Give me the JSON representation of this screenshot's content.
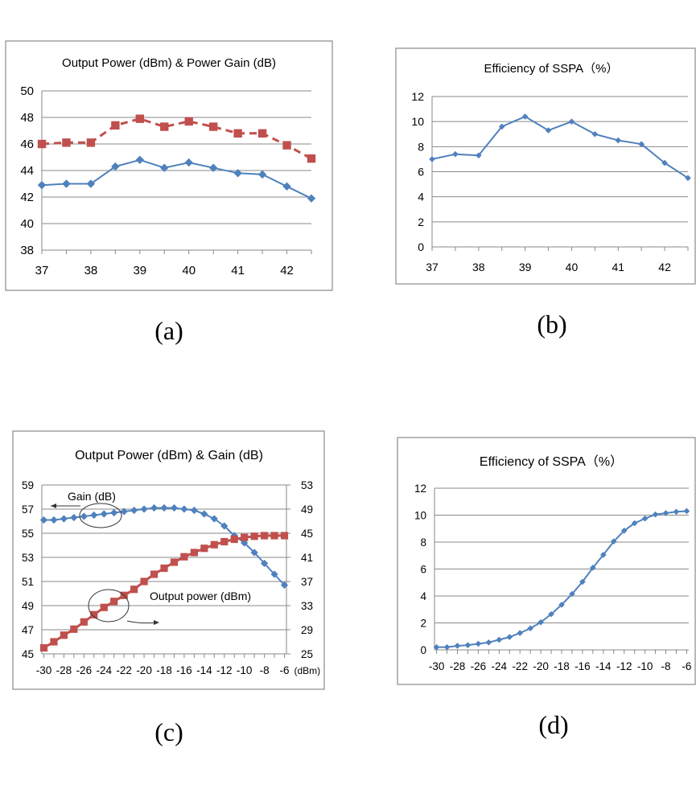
{
  "colors": {
    "blue": "#4f81bd",
    "red": "#c0504d",
    "grid": "#8a8a8a"
  },
  "captions": [
    "(a)",
    "(b)",
    "(c)",
    "(d)"
  ],
  "chart_data": [
    {
      "id": "a",
      "type": "line",
      "title": "Output Power (dBm) & Power Gain (dB)",
      "x": [
        37,
        37.5,
        38,
        38.5,
        39,
        39.5,
        40,
        40.5,
        41,
        41.5,
        42,
        42.5
      ],
      "xticks": [
        37,
        38,
        39,
        40,
        41,
        42
      ],
      "xlim": [
        37,
        42.5
      ],
      "yticks": [
        38,
        40,
        42,
        44,
        46,
        48,
        50
      ],
      "ylim": [
        38,
        50
      ],
      "series": [
        {
          "name": "Output Power (dBm)",
          "color": "#4f81bd",
          "marker": "diamond",
          "dashed": false,
          "values": [
            42.9,
            43.0,
            43.0,
            44.3,
            44.8,
            44.2,
            44.6,
            44.2,
            43.8,
            43.7,
            42.8,
            41.9
          ]
        },
        {
          "name": "Power Gain (dB)",
          "color": "#c0504d",
          "marker": "square",
          "dashed": true,
          "values": [
            46.0,
            46.1,
            46.1,
            47.4,
            47.9,
            47.3,
            47.7,
            47.3,
            46.8,
            46.8,
            45.9,
            44.9
          ]
        }
      ]
    },
    {
      "id": "b",
      "type": "line",
      "title": "Efficiency of SSPA（%）",
      "x": [
        37,
        37.5,
        38,
        38.5,
        39,
        39.5,
        40,
        40.5,
        41,
        41.5,
        42,
        42.5
      ],
      "xticks": [
        37,
        38,
        39,
        40,
        41,
        42
      ],
      "xlim": [
        37,
        42.5
      ],
      "yticks": [
        0,
        2,
        4,
        6,
        8,
        10,
        12
      ],
      "ylim": [
        0,
        12
      ],
      "series": [
        {
          "name": "Efficiency (%)",
          "color": "#4f81bd",
          "marker": "diamond",
          "dashed": false,
          "values": [
            7.0,
            7.4,
            7.3,
            9.6,
            10.4,
            9.3,
            10.0,
            9.0,
            8.5,
            8.2,
            6.7,
            5.5
          ]
        }
      ]
    },
    {
      "id": "c",
      "type": "line",
      "title": "Output Power (dBm) & Gain (dB)",
      "x": [
        -30,
        -29,
        -28,
        -27,
        -26,
        -25,
        -24,
        -23,
        -22,
        -21,
        -20,
        -19,
        -18,
        -17,
        -16,
        -15,
        -14,
        -13,
        -12,
        -11,
        -10,
        -9,
        -8,
        -7,
        -6
      ],
      "xticks": [
        -30,
        -28,
        -26,
        -24,
        -22,
        -20,
        -18,
        -16,
        -14,
        -12,
        -10,
        -8,
        -6
      ],
      "xlim": [
        -30.2,
        -5.8
      ],
      "xunit": "(dBm)",
      "yticks": [
        45,
        47,
        49,
        51,
        53,
        55,
        57,
        59
      ],
      "ylim": [
        45,
        59
      ],
      "y2ticks": [
        25,
        29,
        33,
        37,
        41,
        45,
        49,
        53
      ],
      "y2lim": [
        25,
        53
      ],
      "series": [
        {
          "name": "Gain (dB)",
          "color": "#4f81bd",
          "marker": "diamond",
          "axis": "left",
          "values": [
            56.1,
            56.1,
            56.2,
            56.3,
            56.4,
            56.5,
            56.6,
            56.7,
            56.8,
            56.9,
            57.0,
            57.1,
            57.1,
            57.1,
            57.0,
            56.9,
            56.6,
            56.2,
            55.6,
            54.8,
            54.2,
            53.4,
            52.5,
            51.6,
            50.7
          ]
        },
        {
          "name": "Output power (dBm)",
          "color": "#c0504d",
          "marker": "square",
          "axis": "right",
          "values": [
            26.0,
            27.0,
            28.1,
            29.1,
            30.3,
            31.5,
            32.7,
            33.7,
            34.7,
            35.7,
            37.0,
            38.2,
            39.2,
            40.2,
            41.1,
            41.8,
            42.5,
            43.1,
            43.6,
            44.0,
            44.3,
            44.5,
            44.6,
            44.6,
            44.6
          ]
        }
      ],
      "annotations": [
        "Gain (dB)",
        "Output power (dBm)"
      ]
    },
    {
      "id": "d",
      "type": "line",
      "title": "Efficiency of SSPA（%）",
      "x": [
        -30,
        -29,
        -28,
        -27,
        -26,
        -25,
        -24,
        -23,
        -22,
        -21,
        -20,
        -19,
        -18,
        -17,
        -16,
        -15,
        -14,
        -13,
        -12,
        -11,
        -10,
        -9,
        -8,
        -7,
        -6
      ],
      "xticks": [
        -30,
        -28,
        -26,
        -24,
        -22,
        -20,
        -18,
        -16,
        -14,
        -12,
        -10,
        -8,
        -6
      ],
      "xlim": [
        -30.2,
        -5.8
      ],
      "yticks": [
        0,
        2,
        4,
        6,
        8,
        10,
        12
      ],
      "ylim": [
        0,
        12
      ],
      "series": [
        {
          "name": "Efficiency (%)",
          "color": "#4f81bd",
          "marker": "diamond",
          "dashed": false,
          "values": [
            0.2,
            0.2,
            0.3,
            0.35,
            0.45,
            0.55,
            0.75,
            0.95,
            1.25,
            1.6,
            2.05,
            2.65,
            3.35,
            4.15,
            5.05,
            6.1,
            7.05,
            8.05,
            8.85,
            9.4,
            9.75,
            10.05,
            10.15,
            10.25,
            10.3
          ]
        }
      ]
    }
  ]
}
